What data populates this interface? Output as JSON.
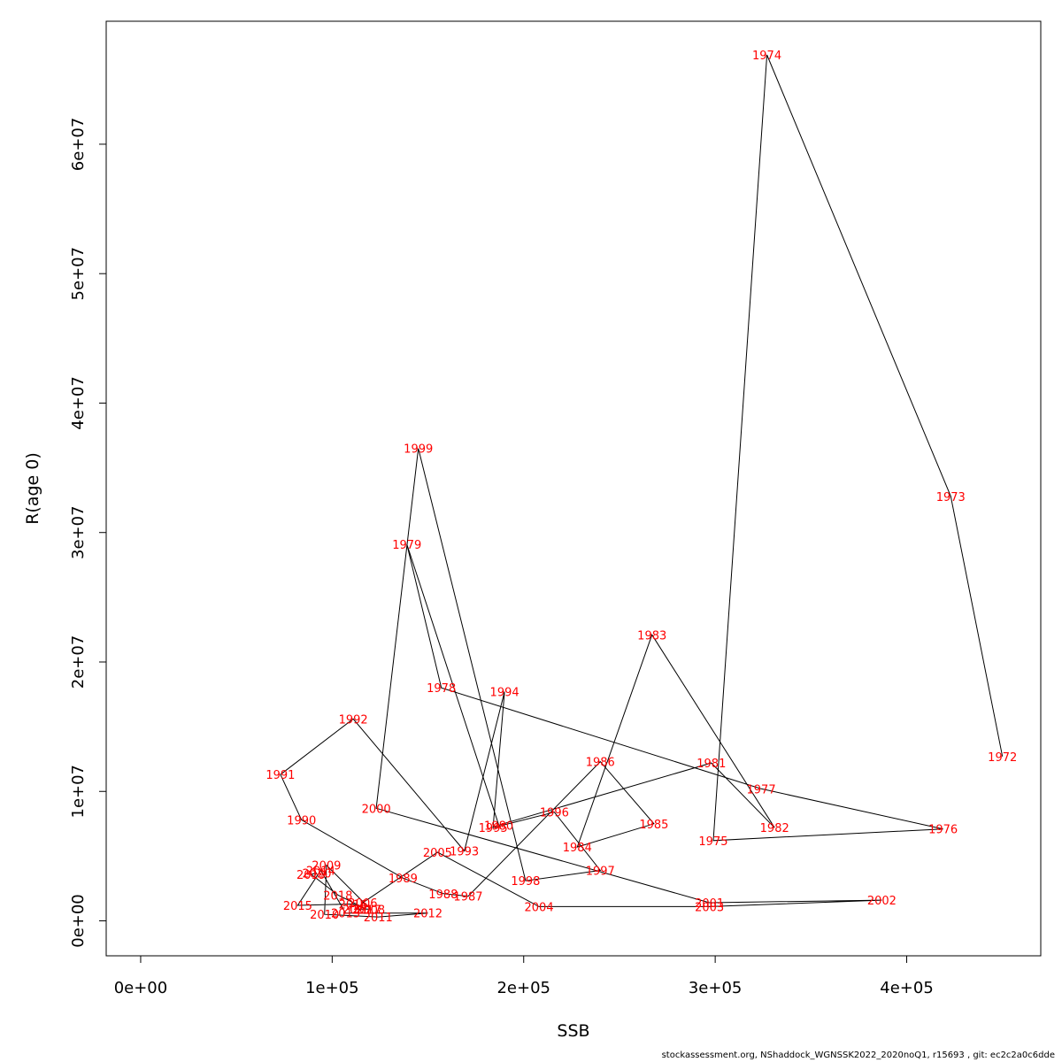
{
  "chart_data": {
    "type": "line",
    "xlabel": "SSB",
    "ylabel": "R(age 0)",
    "xlim": [
      -18000,
      470000
    ],
    "ylim": [
      -2700000,
      69500000
    ],
    "x_ticks": [
      0,
      100000,
      200000,
      300000,
      400000
    ],
    "x_tick_labels": [
      "0e+00",
      "1e+05",
      "2e+05",
      "3e+05",
      "4e+05"
    ],
    "y_ticks": [
      0,
      10000000,
      20000000,
      30000000,
      40000000,
      50000000,
      60000000
    ],
    "y_tick_labels": [
      "0e+00",
      "1e+07",
      "2e+07",
      "3e+07",
      "4e+07",
      "5e+07",
      "6e+07"
    ],
    "grid": false,
    "line_color": "#000000",
    "label_color": "#ff0000",
    "points": [
      {
        "year": "1972",
        "x": 450000,
        "y": 12700000
      },
      {
        "year": "1973",
        "x": 423000,
        "y": 32800000
      },
      {
        "year": "1974",
        "x": 327000,
        "y": 66900000
      },
      {
        "year": "1975",
        "x": 299000,
        "y": 6200000
      },
      {
        "year": "1976",
        "x": 419000,
        "y": 7100000
      },
      {
        "year": "1977",
        "x": 324000,
        "y": 10200000
      },
      {
        "year": "1978",
        "x": 157000,
        "y": 18000000
      },
      {
        "year": "1979",
        "x": 139000,
        "y": 29100000
      },
      {
        "year": "1980",
        "x": 187000,
        "y": 7400000
      },
      {
        "year": "1981",
        "x": 298000,
        "y": 12200000
      },
      {
        "year": "1982",
        "x": 331000,
        "y": 7200000
      },
      {
        "year": "1983",
        "x": 267000,
        "y": 22100000
      },
      {
        "year": "1984",
        "x": 228000,
        "y": 5700000
      },
      {
        "year": "1985",
        "x": 268000,
        "y": 7500000
      },
      {
        "year": "1986",
        "x": 240000,
        "y": 12300000
      },
      {
        "year": "1987",
        "x": 171000,
        "y": 1900000
      },
      {
        "year": "1988",
        "x": 158000,
        "y": 2100000
      },
      {
        "year": "1989",
        "x": 137000,
        "y": 3300000
      },
      {
        "year": "1990",
        "x": 84000,
        "y": 7800000
      },
      {
        "year": "1991",
        "x": 73000,
        "y": 11300000
      },
      {
        "year": "1992",
        "x": 111000,
        "y": 15600000
      },
      {
        "year": "1993",
        "x": 169000,
        "y": 5400000
      },
      {
        "year": "1994",
        "x": 190000,
        "y": 17700000
      },
      {
        "year": "1995",
        "x": 184000,
        "y": 7200000
      },
      {
        "year": "1996",
        "x": 216000,
        "y": 8400000
      },
      {
        "year": "1997",
        "x": 240000,
        "y": 3900000
      },
      {
        "year": "1998",
        "x": 201000,
        "y": 3100000
      },
      {
        "year": "1999",
        "x": 145000,
        "y": 36500000
      },
      {
        "year": "2000",
        "x": 123000,
        "y": 8700000
      },
      {
        "year": "2001",
        "x": 297000,
        "y": 1400000
      },
      {
        "year": "2002",
        "x": 387000,
        "y": 1600000
      },
      {
        "year": "2003",
        "x": 297000,
        "y": 1100000
      },
      {
        "year": "2004",
        "x": 208000,
        "y": 1100000
      },
      {
        "year": "2005",
        "x": 155000,
        "y": 5300000
      },
      {
        "year": "2006",
        "x": 116000,
        "y": 1400000
      },
      {
        "year": "2007",
        "x": 113000,
        "y": 900000
      },
      {
        "year": "2008",
        "x": 120000,
        "y": 900000
      },
      {
        "year": "2009",
        "x": 97000,
        "y": 4300000
      },
      {
        "year": "2010",
        "x": 96000,
        "y": 500000
      },
      {
        "year": "2011",
        "x": 124000,
        "y": 300000
      },
      {
        "year": "2012",
        "x": 150000,
        "y": 600000
      },
      {
        "year": "2013",
        "x": 107000,
        "y": 600000
      },
      {
        "year": "2014",
        "x": 94000,
        "y": 3900000
      },
      {
        "year": "2015",
        "x": 82000,
        "y": 1200000
      },
      {
        "year": "2016",
        "x": 111000,
        "y": 1300000
      },
      {
        "year": "2017",
        "x": 118000,
        "y": 900000
      },
      {
        "year": "2018",
        "x": 103000,
        "y": 2000000
      },
      {
        "year": "2019",
        "x": 89000,
        "y": 3600000
      },
      {
        "year": "2020",
        "x": 92000,
        "y": 3700000
      }
    ]
  },
  "footer_text": "stockassessment.org, NShaddock_WGNSSK2022_2020noQ1, r15693 , git: ec2c2a0c6dde"
}
